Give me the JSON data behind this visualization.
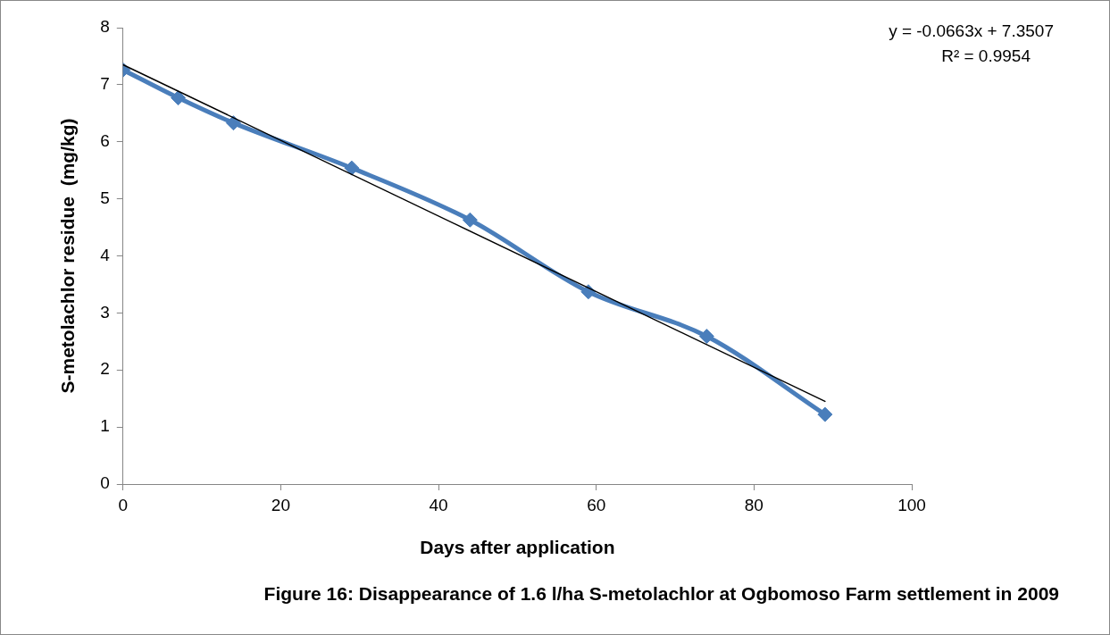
{
  "chart_data": {
    "type": "line",
    "xlabel": "Days after application",
    "ylabel": "S-metolachlor residue  (mg/kg)",
    "x": [
      0,
      7,
      14,
      29,
      44,
      59,
      74,
      89
    ],
    "series": [
      {
        "color": "#4a7ebb",
        "marker": "diamond",
        "values": [
          7.26,
          6.77,
          6.33,
          5.54,
          4.63,
          3.37,
          2.59,
          1.22
        ]
      },
      {
        "color": "#000000",
        "marker": "none",
        "x": [
          0,
          89
        ],
        "values": [
          7.35,
          1.45
        ]
      }
    ],
    "xlim": [
      0,
      100
    ],
    "xticks": [
      0,
      20,
      40,
      60,
      80,
      100
    ],
    "ylim": [
      0,
      8
    ],
    "yticks": [
      0,
      1,
      2,
      3,
      4,
      5,
      6,
      7,
      8
    ],
    "grid": false,
    "legend": false,
    "annotations": [
      "y = -0.0663x + 7.3507",
      "R² = 0.9954",
      "Figure 16: Disappearance of 1.6 l/ha S-metolachlor at Ogbomoso Farm settlement in 2009"
    ]
  }
}
